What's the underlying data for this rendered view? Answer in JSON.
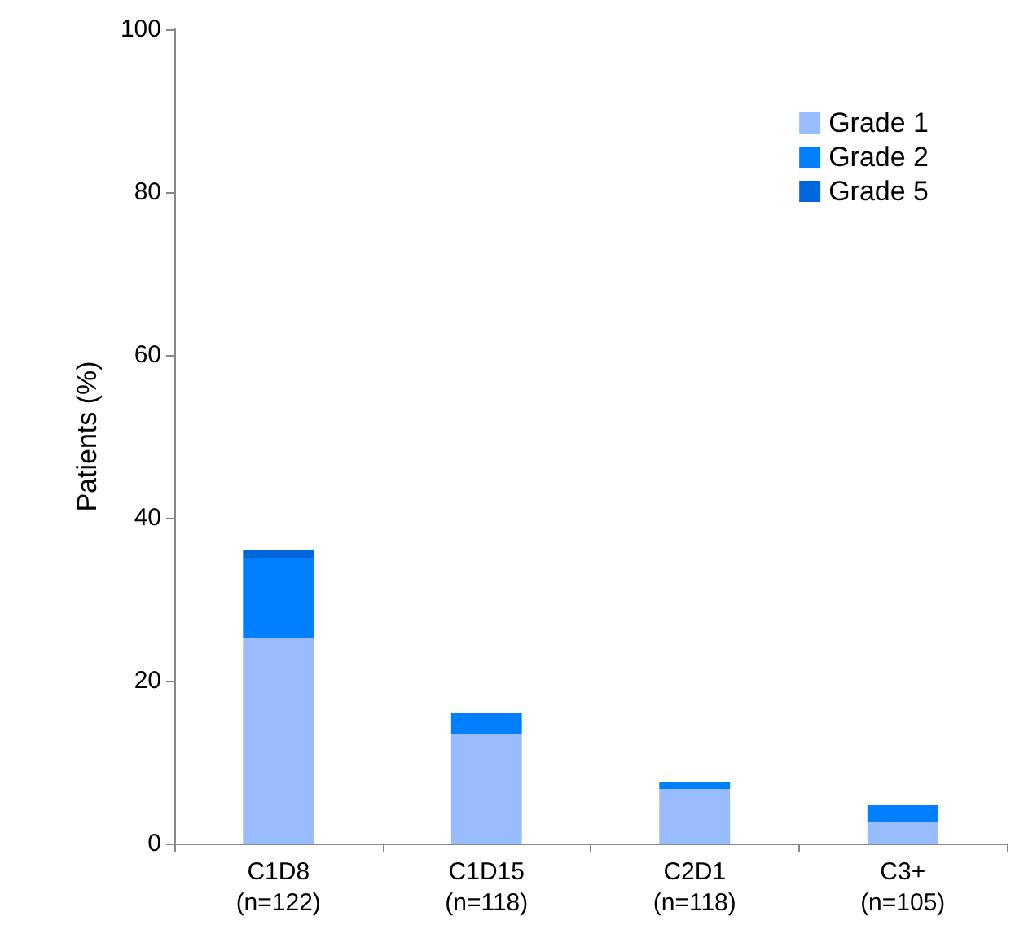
{
  "chart_data": {
    "type": "bar",
    "stacked": true,
    "ylabel": "Patients (%)",
    "categories": [
      "C1D8\n(n=122)",
      "C1D15\n(n=118)",
      "C2D1\n(n=118)",
      "C3+\n(n=105)"
    ],
    "series": [
      {
        "name": "Grade 1",
        "color": "#99bbff",
        "values": [
          25.3,
          13.5,
          6.7,
          2.7
        ]
      },
      {
        "name": "Grade 2",
        "color": "#0080ff",
        "values": [
          9.8,
          2.5,
          0.8,
          2.0
        ]
      },
      {
        "name": "Grade 5",
        "color": "#0066dd",
        "values": [
          0.9,
          null,
          null,
          null
        ]
      }
    ],
    "ylim": [
      0,
      100
    ],
    "yticks": [
      0,
      20,
      40,
      60,
      80,
      100
    ],
    "grid": false,
    "legend": "top right"
  }
}
